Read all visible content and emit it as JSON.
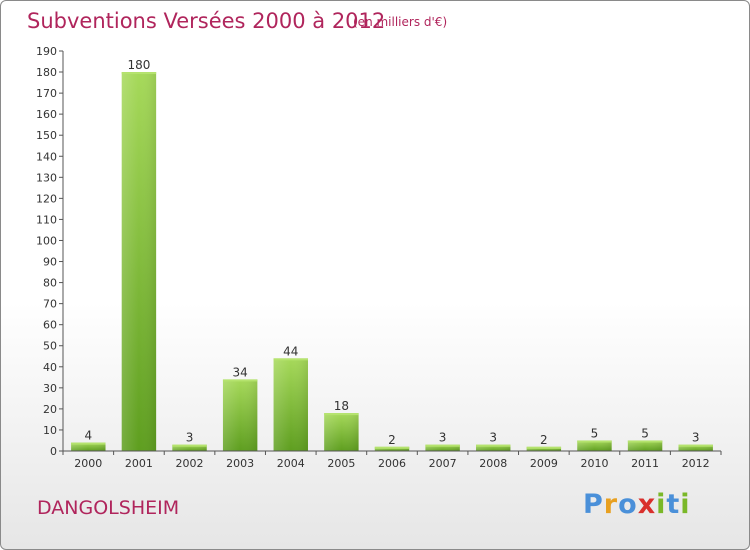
{
  "header": {
    "title": "Subventions Versées 2000 à 2012",
    "unit": "(en milliers d'€)"
  },
  "place_name": "DANGOLSHEIM",
  "logo": {
    "text": "Proxiti",
    "letters": [
      "P",
      "r",
      "o",
      "x",
      "i",
      "t",
      "i"
    ],
    "colors": [
      "#4a90d9",
      "#e8a020",
      "#4a90d9",
      "#d9302c",
      "#7ab828",
      "#4a90d9",
      "#7ab828"
    ]
  },
  "chart_data": {
    "type": "bar",
    "title": "Subventions Versées 2000 à 2012",
    "subtitle": "(en milliers d'€)",
    "categories": [
      "2000",
      "2001",
      "2002",
      "2003",
      "2004",
      "2005",
      "2006",
      "2007",
      "2008",
      "2009",
      "2010",
      "2011",
      "2012"
    ],
    "values": [
      4,
      180,
      3,
      34,
      44,
      18,
      2,
      3,
      3,
      2,
      5,
      5,
      3
    ],
    "data_labels": [
      "4",
      "180",
      "3",
      "34",
      "44",
      "18",
      "2",
      "3",
      "3",
      "2",
      "5",
      "5",
      "3"
    ],
    "ylim": [
      0,
      190
    ],
    "yticks": [
      0,
      10,
      20,
      30,
      40,
      50,
      60,
      70,
      80,
      90,
      100,
      110,
      120,
      130,
      140,
      150,
      160,
      170,
      180,
      190
    ],
    "grid": false,
    "bar_color": "#7dc232",
    "bar_color_dark": "#5e9e1f"
  }
}
